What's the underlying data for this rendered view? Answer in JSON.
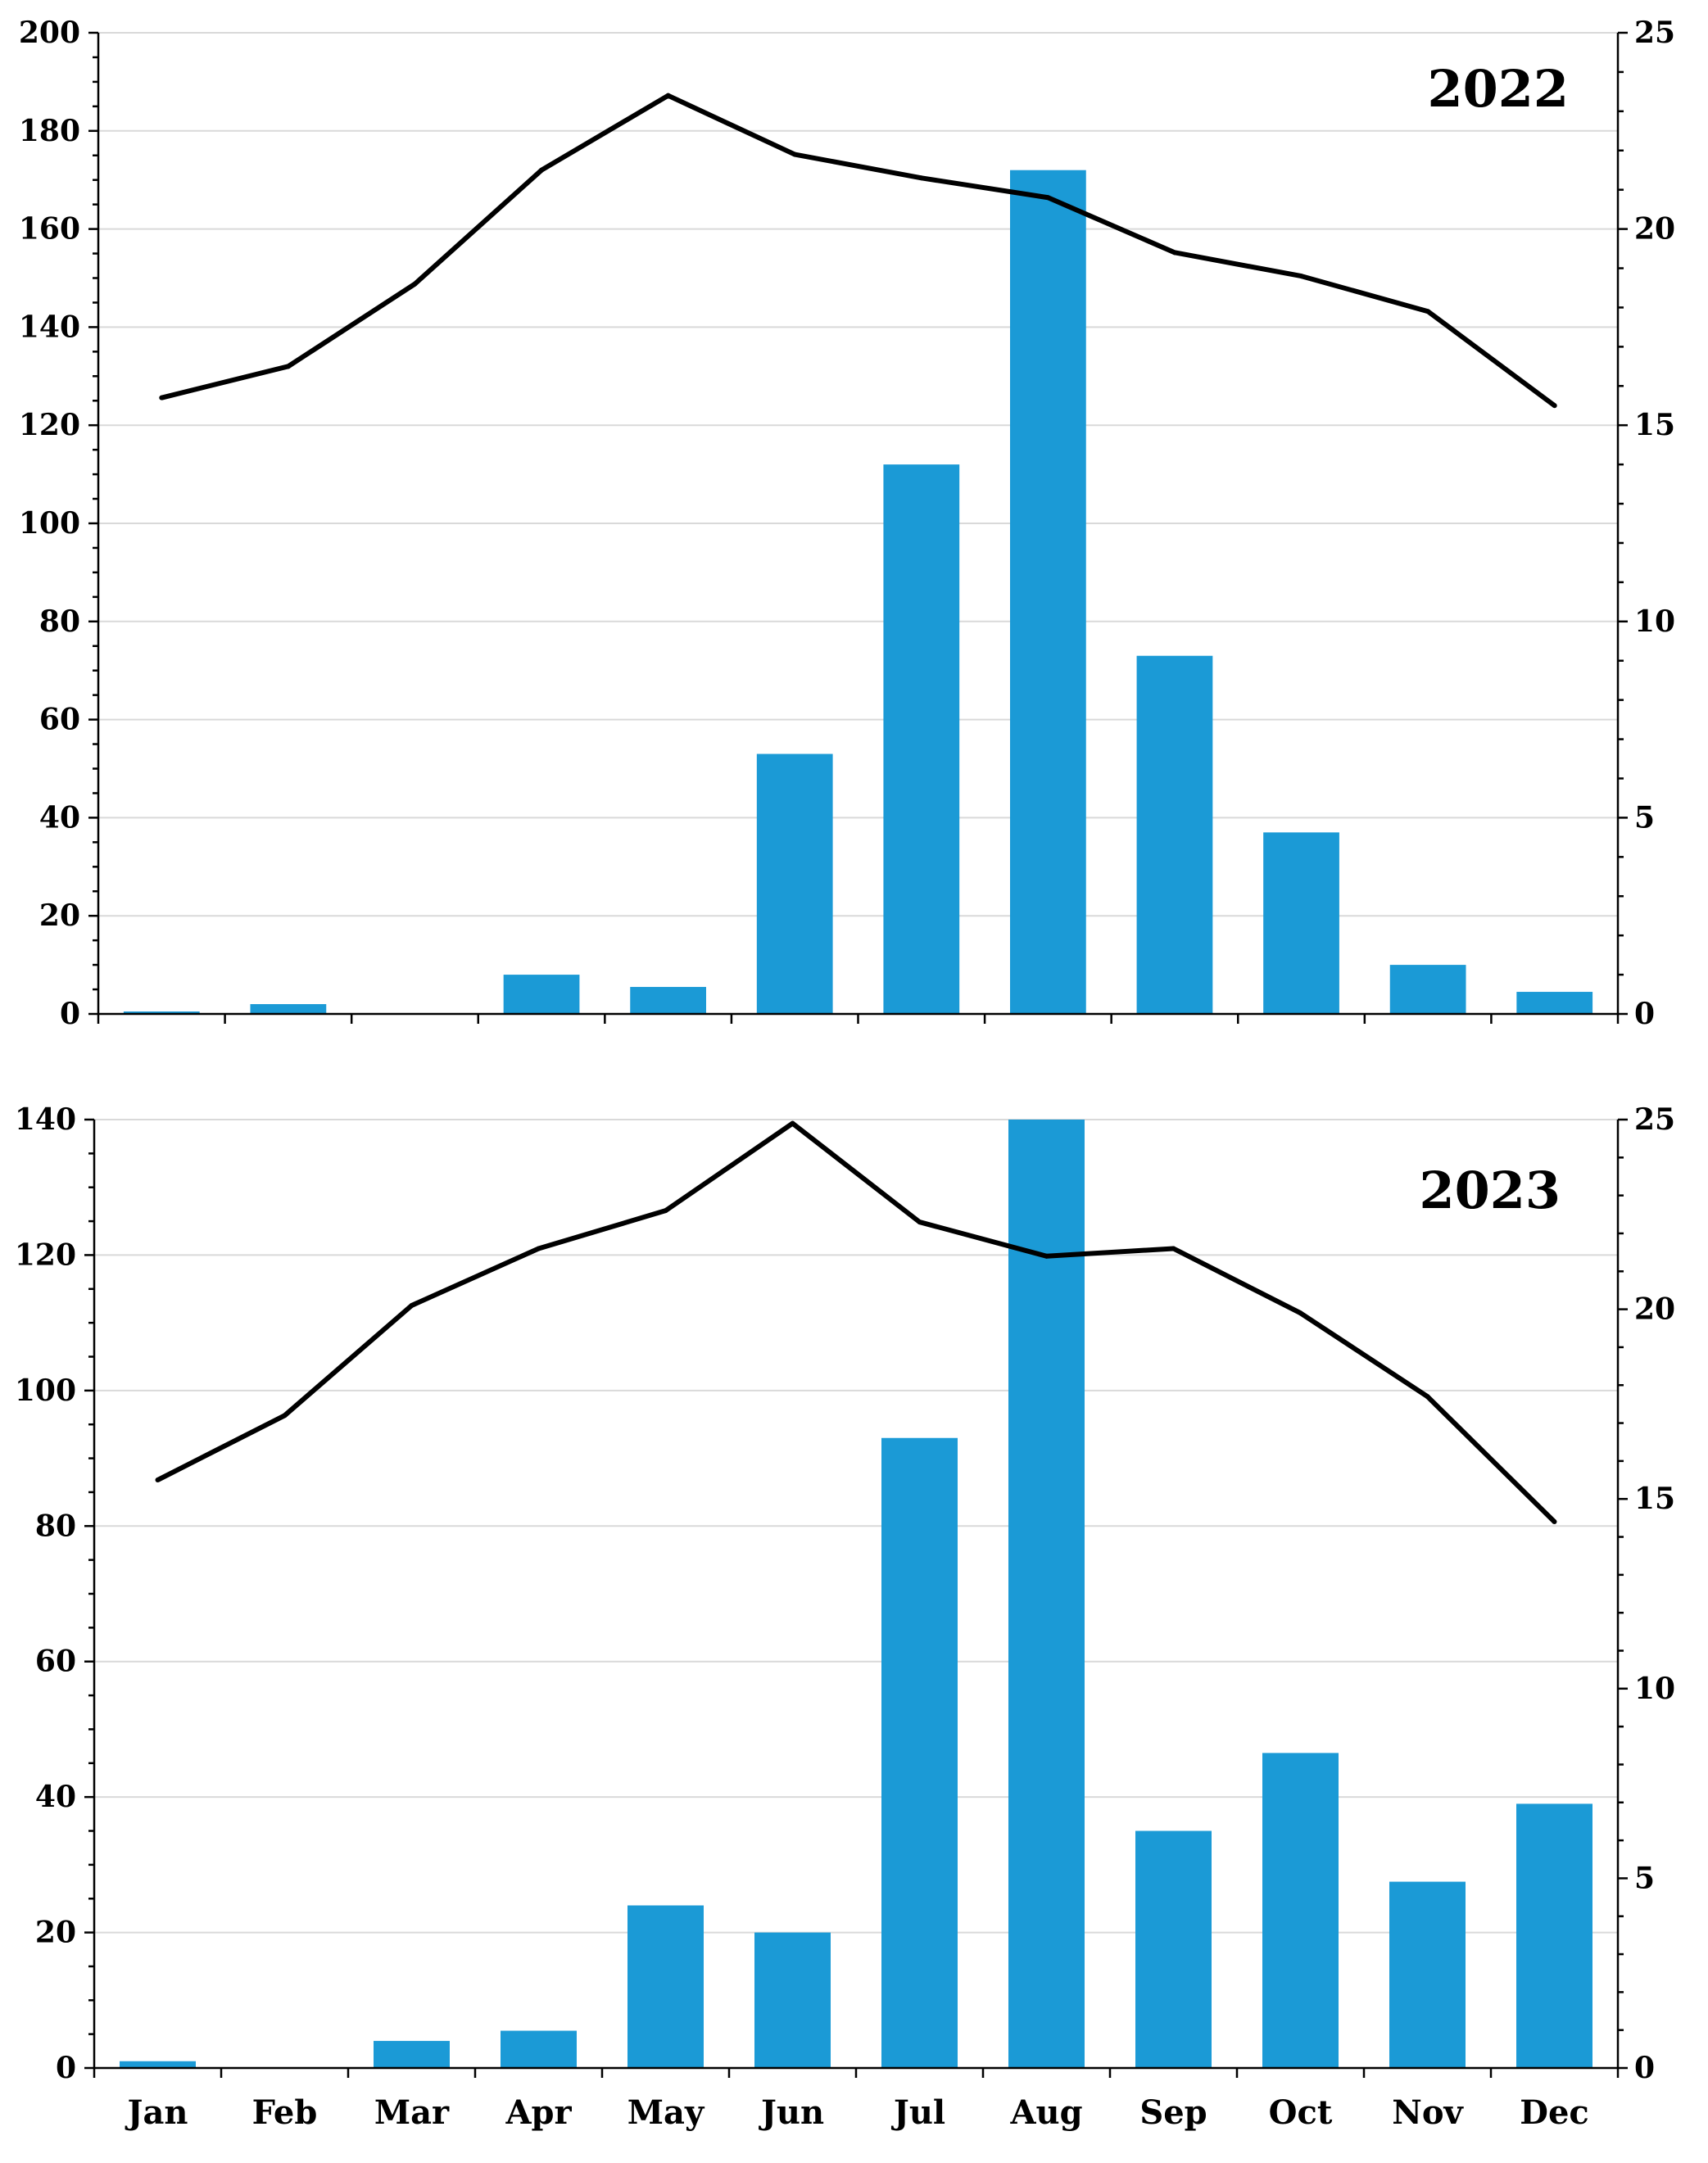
{
  "chart_data": [
    {
      "type": "bar",
      "title": "2022",
      "categories": [
        "Jan",
        "Feb",
        "Mar",
        "Apr",
        "May",
        "Jun",
        "Jul",
        "Aug",
        "Sep",
        "Oct",
        "Nov",
        "Dec"
      ],
      "series": [
        {
          "name": "bars",
          "axis": "left",
          "values": [
            0.5,
            2,
            0,
            8,
            5.5,
            53,
            112,
            172,
            73,
            37,
            10,
            4.5
          ]
        },
        {
          "name": "line",
          "axis": "right",
          "type": "line",
          "values": [
            15.7,
            16.5,
            18.6,
            21.5,
            23.4,
            21.9,
            21.3,
            20.8,
            19.4,
            18.8,
            17.9,
            15.5
          ]
        }
      ],
      "ylim": [
        0,
        200
      ],
      "y_ticks": [
        0,
        20,
        40,
        60,
        80,
        100,
        120,
        140,
        160,
        180,
        200
      ],
      "y2lim": [
        0,
        25
      ],
      "y2_ticks": [
        0,
        5,
        10,
        15,
        20,
        25
      ],
      "xlabel": "",
      "ylabel": "",
      "y2label": "",
      "grid": true
    },
    {
      "type": "bar",
      "title": "2023",
      "categories": [
        "Jan",
        "Feb",
        "Mar",
        "Apr",
        "May",
        "Jun",
        "Jul",
        "Aug",
        "Sep",
        "Oct",
        "Nov",
        "Dec"
      ],
      "series": [
        {
          "name": "bars",
          "axis": "left",
          "values": [
            1,
            0,
            4,
            5.5,
            24,
            20,
            93,
            140,
            35,
            46.5,
            27.5,
            39
          ]
        },
        {
          "name": "line",
          "axis": "right",
          "type": "line",
          "values": [
            15.5,
            17.2,
            20.1,
            21.6,
            22.6,
            24.9,
            22.3,
            21.4,
            21.6,
            19.9,
            17.7,
            14.4
          ]
        }
      ],
      "ylim": [
        0,
        140
      ],
      "y_ticks": [
        0,
        20,
        40,
        60,
        80,
        100,
        120,
        140
      ],
      "y2lim": [
        0,
        25
      ],
      "y2_ticks": [
        0,
        5,
        10,
        15,
        20,
        25
      ],
      "xlabel": "",
      "ylabel": "",
      "y2label": "",
      "grid": true
    }
  ],
  "colors": {
    "bar": "#1b9ad6",
    "line": "#000000",
    "grid": "#d9d9d9"
  }
}
